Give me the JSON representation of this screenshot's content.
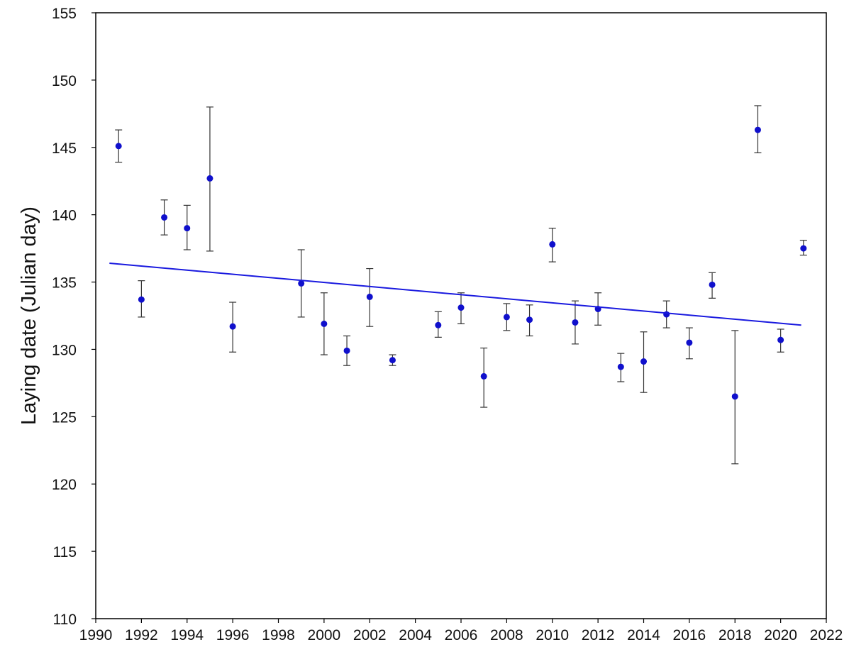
{
  "chart_data": {
    "type": "scatter",
    "title": "",
    "xlabel": "",
    "ylabel": "Laying date (Julian day)",
    "xlim": [
      1990,
      2022
    ],
    "ylim": [
      110,
      155
    ],
    "x_ticks": [
      1990,
      1992,
      1994,
      1996,
      1998,
      2000,
      2002,
      2004,
      2006,
      2008,
      2010,
      2012,
      2014,
      2016,
      2018,
      2020,
      2022
    ],
    "y_ticks": [
      110,
      115,
      120,
      125,
      130,
      135,
      140,
      145,
      150,
      155
    ],
    "x_tick_labels": [
      "1990",
      "1992",
      "1994",
      "1996",
      "1998",
      "2000",
      "2002",
      "2004",
      "2006",
      "2008",
      "2010",
      "2012",
      "2014",
      "2016",
      "2018",
      "2020",
      "2022"
    ],
    "y_tick_labels": [
      "110",
      "115",
      "120",
      "125",
      "130",
      "135",
      "140",
      "145",
      "150",
      "155"
    ],
    "grid": false,
    "legend": "none",
    "series": [
      {
        "marker_color": "#1010cc",
        "points": [
          {
            "x": 1991,
            "y": 145.1,
            "err_low": 143.9,
            "err_high": 146.3
          },
          {
            "x": 1992,
            "y": 133.7,
            "err_low": 132.4,
            "err_high": 135.1
          },
          {
            "x": 1993,
            "y": 139.8,
            "err_low": 138.5,
            "err_high": 141.1
          },
          {
            "x": 1994,
            "y": 139.0,
            "err_low": 137.4,
            "err_high": 140.7
          },
          {
            "x": 1995,
            "y": 142.7,
            "err_low": 137.3,
            "err_high": 148.0
          },
          {
            "x": 1996,
            "y": 131.7,
            "err_low": 129.8,
            "err_high": 133.5
          },
          {
            "x": 1999,
            "y": 134.9,
            "err_low": 132.4,
            "err_high": 137.4
          },
          {
            "x": 2000,
            "y": 131.9,
            "err_low": 129.6,
            "err_high": 134.2
          },
          {
            "x": 2001,
            "y": 129.9,
            "err_low": 128.8,
            "err_high": 131.0
          },
          {
            "x": 2002,
            "y": 133.9,
            "err_low": 131.7,
            "err_high": 136.0
          },
          {
            "x": 2003,
            "y": 129.2,
            "err_low": 128.8,
            "err_high": 129.6
          },
          {
            "x": 2005,
            "y": 131.8,
            "err_low": 130.9,
            "err_high": 132.8
          },
          {
            "x": 2006,
            "y": 133.1,
            "err_low": 131.9,
            "err_high": 134.2
          },
          {
            "x": 2007,
            "y": 128.0,
            "err_low": 125.7,
            "err_high": 130.1
          },
          {
            "x": 2008,
            "y": 132.4,
            "err_low": 131.4,
            "err_high": 133.4
          },
          {
            "x": 2009,
            "y": 132.2,
            "err_low": 131.0,
            "err_high": 133.3
          },
          {
            "x": 2010,
            "y": 137.8,
            "err_low": 136.5,
            "err_high": 139.0
          },
          {
            "x": 2011,
            "y": 132.0,
            "err_low": 130.4,
            "err_high": 133.6
          },
          {
            "x": 2012,
            "y": 133.0,
            "err_low": 131.8,
            "err_high": 134.2
          },
          {
            "x": 2013,
            "y": 128.7,
            "err_low": 127.6,
            "err_high": 129.7
          },
          {
            "x": 2014,
            "y": 129.1,
            "err_low": 126.8,
            "err_high": 131.3
          },
          {
            "x": 2015,
            "y": 132.6,
            "err_low": 131.6,
            "err_high": 133.6
          },
          {
            "x": 2016,
            "y": 130.5,
            "err_low": 129.3,
            "err_high": 131.6
          },
          {
            "x": 2017,
            "y": 134.8,
            "err_low": 133.8,
            "err_high": 135.7
          },
          {
            "x": 2018,
            "y": 126.5,
            "err_low": 121.5,
            "err_high": 131.4
          },
          {
            "x": 2019,
            "y": 146.3,
            "err_low": 144.6,
            "err_high": 148.1
          },
          {
            "x": 2020,
            "y": 130.7,
            "err_low": 129.8,
            "err_high": 131.5
          },
          {
            "x": 2021,
            "y": 137.5,
            "err_low": 137.0,
            "err_high": 138.1
          }
        ]
      }
    ],
    "trendline": {
      "color": "#1a1adf",
      "x_start": 1990.6,
      "y_start": 136.4,
      "x_end": 2020.9,
      "y_end": 131.8
    },
    "colors": {
      "axis": "#000000",
      "error_bar": "#333333"
    }
  }
}
